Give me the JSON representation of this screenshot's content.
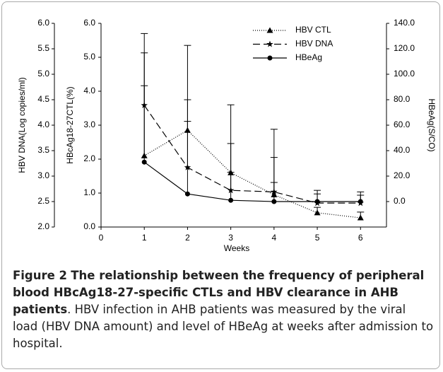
{
  "chart_data": {
    "type": "line",
    "xlabel": "Weeks",
    "ylabel": "HBcAg18-27CTL(%)",
    "y2label": "HBeAg(S/CO)",
    "y3label": "HBV DNA(Log copies/ml)",
    "x": [
      1,
      2,
      3,
      4,
      5,
      6
    ],
    "xlim": [
      0,
      6.6
    ],
    "xticks": [
      0,
      1,
      2,
      3,
      4,
      5,
      6
    ],
    "ylim": [
      0,
      6
    ],
    "yticks": [
      {
        "value": 0,
        "label": "0.0"
      },
      {
        "value": 1,
        "label": "1.0"
      },
      {
        "value": 2,
        "label": "2.0"
      },
      {
        "value": 3,
        "label": "3.0"
      },
      {
        "value": 4,
        "label": "4.0"
      },
      {
        "value": 5,
        "label": "5.0"
      },
      {
        "value": 6,
        "label": "6.0"
      }
    ],
    "y2lim": [
      -20,
      140
    ],
    "y2ticks": [
      {
        "value": 0,
        "label": "0.0"
      },
      {
        "value": 20,
        "label": "20.0"
      },
      {
        "value": 40,
        "label": "40.0"
      },
      {
        "value": 60,
        "label": "60.0"
      },
      {
        "value": 80,
        "label": "80.0"
      },
      {
        "value": 100,
        "label": "100.0"
      },
      {
        "value": 120,
        "label": "120.0"
      },
      {
        "value": 140,
        "label": "140.0"
      }
    ],
    "y3lim": [
      2,
      6
    ],
    "y3ticks": [
      {
        "value": 2,
        "label": "2.0"
      },
      {
        "value": 2.5,
        "label": "2.5"
      },
      {
        "value": 3,
        "label": "3.0"
      },
      {
        "value": 3.5,
        "label": "3.5"
      },
      {
        "value": 4,
        "label": "4.0"
      },
      {
        "value": 4.5,
        "label": "4.5"
      },
      {
        "value": 5,
        "label": "5.0"
      },
      {
        "value": 5.5,
        "label": "5.5"
      },
      {
        "value": 6,
        "label": "6.0"
      }
    ],
    "legend": "upper right",
    "series": [
      {
        "name": "HBV CTL",
        "color": "#000000",
        "style": "dotted",
        "marker": "triangle",
        "values": [
          2.1,
          2.85,
          1.6,
          0.95,
          0.42,
          0.27
        ],
        "errors": [
          3.6,
          2.5,
          2.0,
          1.1,
          0.16,
          0.17
        ]
      },
      {
        "name": "HBV DNA",
        "color": "#000000",
        "style": "dashed",
        "marker": "star",
        "axis": "y3",
        "values": [
          4.39,
          3.17,
          2.72,
          2.69,
          2.47,
          2.47
        ],
        "errors": [
          1.03,
          1.33,
          0.92,
          1.23,
          0.25,
          0.22
        ]
      },
      {
        "name": "HBeAg",
        "color": "#000000",
        "style": "solid",
        "marker": "circle",
        "axis": "y2",
        "values": [
          31,
          6,
          1,
          0,
          0,
          0
        ],
        "errors": [
          60,
          57,
          22,
          15,
          6,
          5
        ]
      }
    ]
  },
  "caption": {
    "label": "Figure 2",
    "title": "The relationship between the frequency of peripheral blood HBcAg18-27-specific CTLs and HBV clearance in AHB patients",
    "text": ". HBV infection in AHB patients was measured by the viral load (HBV DNA amount) and level of HBeAg at weeks after admission to hospital."
  }
}
